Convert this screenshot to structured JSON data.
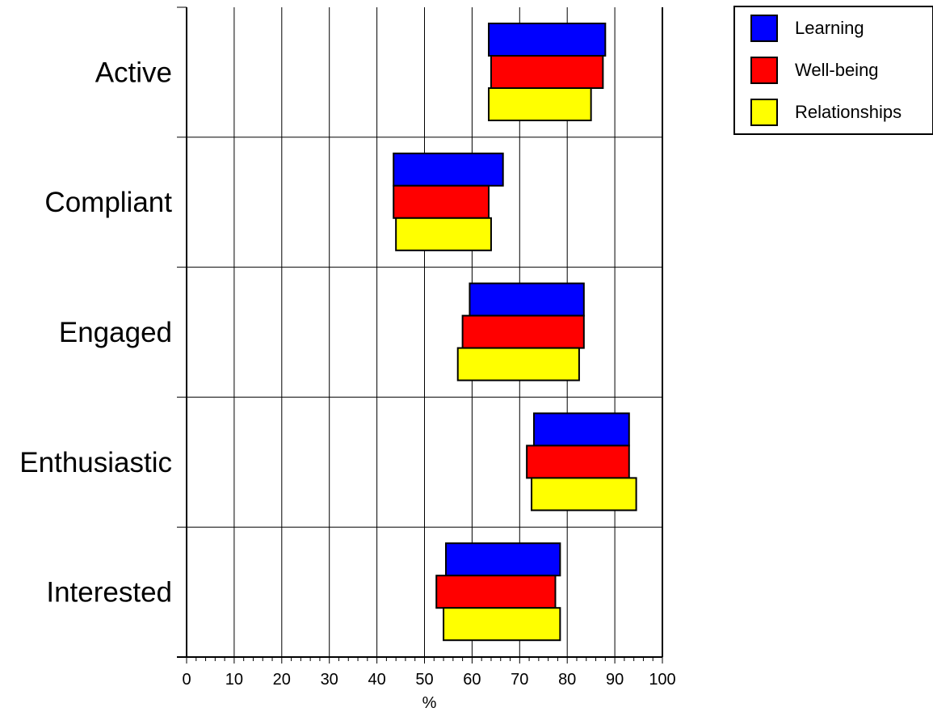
{
  "chart_data": {
    "type": "bar",
    "orientation": "horizontal",
    "bar_style": "floating-range",
    "categories": [
      "Active",
      "Compliant",
      "Engaged",
      "Enthusiastic",
      "Interested"
    ],
    "series": [
      {
        "name": "Learning",
        "color": "#0000ff",
        "ranges": [
          [
            63.5,
            88
          ],
          [
            43.5,
            66.5
          ],
          [
            59.5,
            83.5
          ],
          [
            73,
            93
          ],
          [
            54.5,
            78.5
          ]
        ]
      },
      {
        "name": "Well-being",
        "color": "#ff0000",
        "ranges": [
          [
            64,
            87.5
          ],
          [
            43.5,
            63.5
          ],
          [
            58,
            83.5
          ],
          [
            71.5,
            93
          ],
          [
            52.5,
            77.5
          ]
        ]
      },
      {
        "name": "Relationships",
        "color": "#ffff00",
        "ranges": [
          [
            63.5,
            85
          ],
          [
            44,
            64
          ],
          [
            57,
            82.5
          ],
          [
            72.5,
            94.5
          ],
          [
            54,
            78.5
          ]
        ]
      }
    ],
    "xlabel": "%",
    "ylabel": "",
    "xlim": [
      0,
      100
    ],
    "xticks": [
      "0",
      "10",
      "20",
      "30",
      "40",
      "50",
      "60",
      "70",
      "80",
      "90",
      "100"
    ],
    "grid": true,
    "legend_position": "top-right"
  }
}
